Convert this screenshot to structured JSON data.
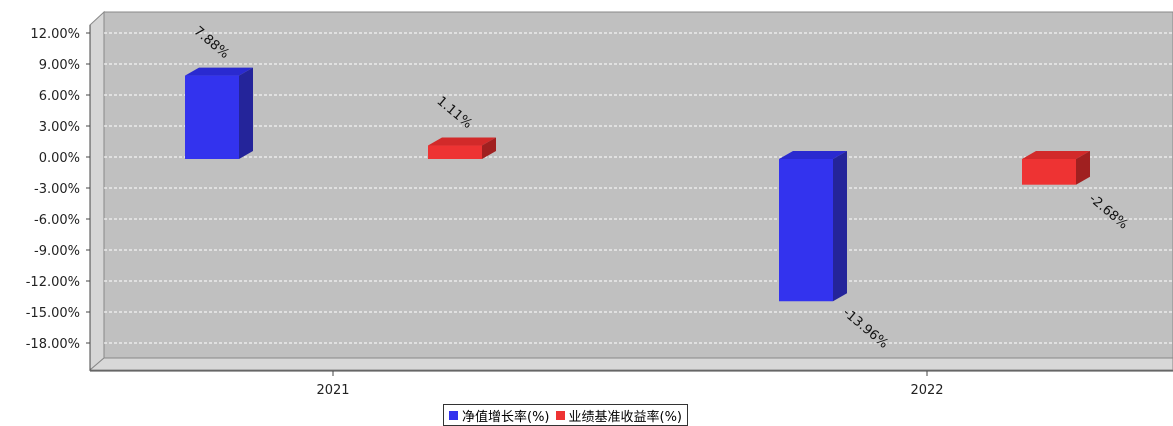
{
  "chart_data": {
    "type": "bar",
    "categories": [
      "2021",
      "2022"
    ],
    "series": [
      {
        "name": "净值增长率(%)",
        "values": [
          7.88,
          -13.96
        ],
        "labels": [
          "7.88%",
          "-13.96%"
        ],
        "color": "#3333ee"
      },
      {
        "name": "业绩基准收益率(%)",
        "values": [
          1.11,
          -2.68
        ],
        "labels": [
          "1.11%",
          "-2.68%"
        ],
        "color": "#ee3333"
      }
    ],
    "yticks": [
      12,
      9,
      6,
      3,
      0,
      -3,
      -6,
      -9,
      -12,
      -15,
      -18
    ],
    "ytick_labels": [
      "12.00%",
      "9.00%",
      "6.00%",
      "3.00%",
      "0.00%",
      "-3.00%",
      "-6.00%",
      "-9.00%",
      "-12.00%",
      "-15.00%",
      "-18.00%"
    ],
    "ylim": [
      -18,
      12
    ],
    "grid": true,
    "plot_background": "#c0c0c0",
    "legend_position": "bottom-center",
    "title": "",
    "xlabel": "",
    "ylabel": ""
  }
}
